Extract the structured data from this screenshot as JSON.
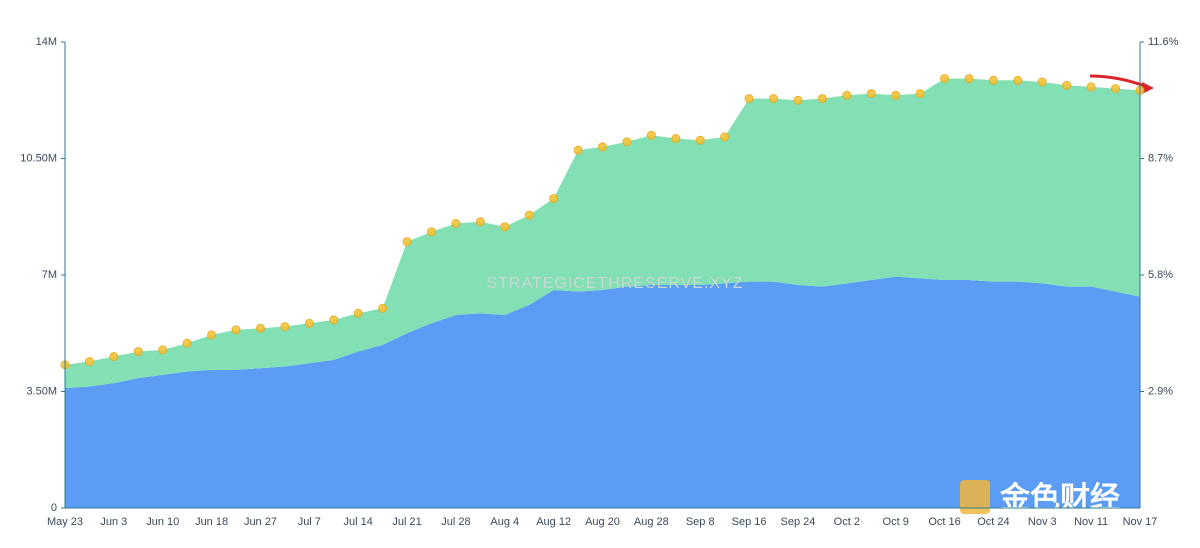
{
  "chart_data": {
    "type": "stacked_area",
    "categories": [
      "May 23",
      null,
      "Jun 3",
      null,
      "Jun 10",
      null,
      "Jun 18",
      null,
      "Jun 27",
      null,
      "Jul 7",
      null,
      "Jul 14",
      null,
      "Jul 21",
      null,
      "Jul 28",
      null,
      "Aug 4",
      null,
      "Aug 12",
      null,
      "Aug 20",
      null,
      "Aug 28",
      null,
      "Sep 8",
      null,
      "Sep 16",
      null,
      "Sep 24",
      null,
      "Oct 2",
      null,
      "Oct 9",
      null,
      "Oct 16",
      null,
      "Oct 24",
      null,
      "Nov 3",
      null,
      "Nov 11",
      null,
      "Nov 17"
    ],
    "series": [
      {
        "color": "#5b9cf5",
        "values": [
          3.6,
          3.65,
          3.75,
          3.9,
          4.0,
          4.1,
          4.15,
          4.15,
          4.2,
          4.25,
          4.35,
          4.45,
          4.7,
          4.9,
          5.25,
          5.55,
          5.8,
          5.85,
          5.8,
          6.1,
          6.55,
          6.5,
          6.55,
          6.65,
          6.7,
          6.7,
          6.7,
          6.75,
          6.8,
          6.8,
          6.7,
          6.65,
          6.75,
          6.85,
          6.95,
          6.9,
          6.85,
          6.85,
          6.8,
          6.8,
          6.75,
          6.65,
          6.65,
          6.5,
          6.35
        ]
      },
      {
        "color": "#82e0b4",
        "values": [
          0.7,
          0.75,
          0.8,
          0.8,
          0.75,
          0.85,
          1.05,
          1.2,
          1.2,
          1.2,
          1.2,
          1.2,
          1.15,
          1.1,
          2.75,
          2.75,
          2.75,
          2.75,
          2.65,
          2.7,
          2.75,
          4.25,
          4.3,
          4.35,
          4.5,
          4.4,
          4.35,
          4.4,
          5.5,
          5.5,
          5.55,
          5.65,
          5.65,
          5.6,
          5.45,
          5.55,
          6.05,
          6.05,
          6.05,
          6.05,
          6.05,
          6.05,
          6.0,
          6.1,
          6.2
        ]
      }
    ],
    "ylim": [
      0,
      14
    ],
    "yticks": [
      0,
      {
        "value": 3.5,
        "label": "3.50M"
      },
      {
        "value": 7,
        "label": "7M"
      },
      {
        "value": 10.5,
        "label": "10.50M"
      },
      {
        "value": 14,
        "label": "14M"
      }
    ],
    "y2lim": [
      0,
      11.6
    ],
    "y2ticks": [
      {
        "value": 2.9,
        "label": "2.9%"
      },
      {
        "value": 5.8,
        "label": "5.8%"
      },
      {
        "value": 8.7,
        "label": "8.7%"
      },
      {
        "value": 11.6,
        "label": "11.6%"
      }
    ],
    "marker_color": "#f5c33b",
    "watermark": "STRATEGICETHRESERVE.XYZ",
    "logo": "金色财经"
  }
}
